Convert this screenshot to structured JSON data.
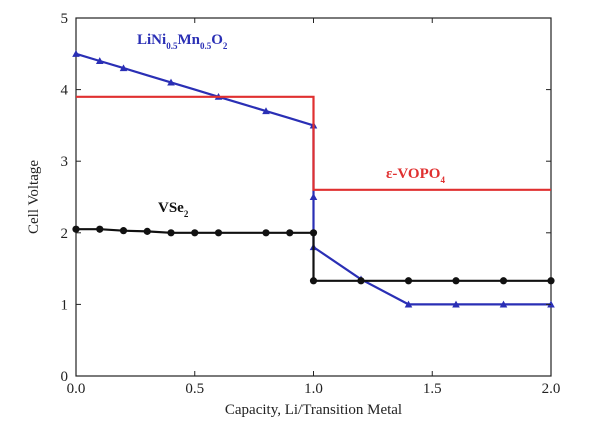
{
  "chart_data": {
    "type": "line",
    "title": "",
    "xlabel": "Capacity, Li/Transition Metal",
    "ylabel": "Cell Voltage",
    "xlim": [
      0,
      2.0
    ],
    "ylim": [
      0,
      5
    ],
    "x_ticks": [
      "0.0",
      "0.5",
      "1.0",
      "1.5",
      "2.0"
    ],
    "y_ticks": [
      "0",
      "1",
      "2",
      "3",
      "4",
      "5"
    ],
    "grid": false,
    "series": [
      {
        "name": "LiNi0.5Mn0.5O2",
        "label_parts": [
          {
            "text": "LiNi",
            "sub": false
          },
          {
            "text": "0.5",
            "sub": true
          },
          {
            "text": "Mn",
            "sub": false
          },
          {
            "text": "0.5",
            "sub": true
          },
          {
            "text": "O",
            "sub": false
          },
          {
            "text": "2",
            "sub": true
          }
        ],
        "color": "#2a2fb5",
        "marker": "triangle",
        "x": [
          0.0,
          0.1,
          0.2,
          0.3,
          0.4,
          0.5,
          0.6,
          0.7,
          0.8,
          0.9,
          1.0,
          1.0,
          1.0,
          1.0,
          1.2,
          1.4,
          1.6,
          1.8,
          2.0
        ],
        "y": [
          4.5,
          4.4,
          4.3,
          4.2,
          4.1,
          4.0,
          3.9,
          3.8,
          3.7,
          3.6,
          3.5,
          2.5,
          1.8,
          1.8,
          1.35,
          1.0,
          1.0,
          1.0,
          1.0
        ],
        "marker_idx": [
          0,
          1,
          2,
          4,
          6,
          8,
          10,
          11,
          12,
          14,
          15,
          16,
          17,
          18
        ]
      },
      {
        "name": "ε-VOPO4",
        "label_parts": [
          {
            "text": "ε-VOPO",
            "sub": false
          },
          {
            "text": "4",
            "sub": true
          }
        ],
        "color": "#e03030",
        "marker": "none",
        "x": [
          0.0,
          0.3,
          0.6,
          0.8,
          1.0,
          1.0,
          1.2,
          1.4,
          1.6,
          1.8,
          2.0
        ],
        "y": [
          3.9,
          3.9,
          3.9,
          3.9,
          3.9,
          2.6,
          2.6,
          2.6,
          2.6,
          2.6,
          2.6
        ],
        "marker_idx": []
      },
      {
        "name": "VSe2",
        "label_parts": [
          {
            "text": "VSe",
            "sub": false
          },
          {
            "text": "2",
            "sub": true
          }
        ],
        "color": "#111111",
        "marker": "circle",
        "x": [
          0.0,
          0.1,
          0.2,
          0.3,
          0.4,
          0.5,
          0.6,
          0.8,
          0.9,
          1.0,
          1.0,
          1.2,
          1.4,
          1.6,
          1.8,
          2.0
        ],
        "y": [
          2.05,
          2.05,
          2.03,
          2.02,
          2.0,
          2.0,
          2.0,
          2.0,
          2.0,
          2.0,
          1.33,
          1.33,
          1.33,
          1.33,
          1.33,
          1.33
        ],
        "marker_idx": [
          0,
          1,
          2,
          3,
          4,
          5,
          6,
          7,
          8,
          9,
          10,
          11,
          12,
          13,
          14,
          15
        ]
      }
    ]
  }
}
